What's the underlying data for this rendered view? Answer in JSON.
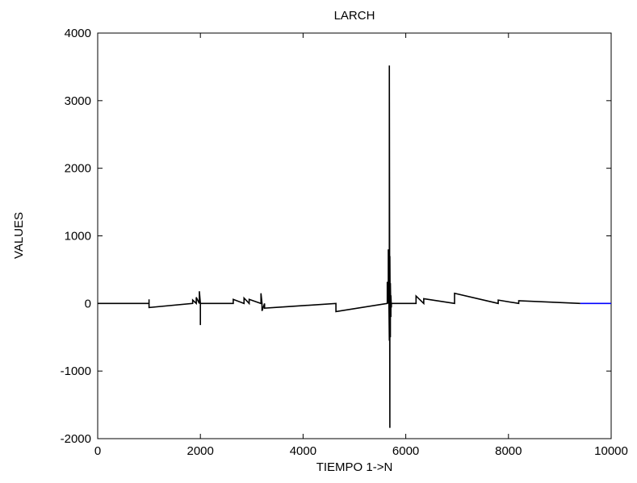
{
  "chart_data": {
    "type": "line",
    "title": "LARCH",
    "xlabel": "TIEMPO 1->N",
    "ylabel": "VALUES",
    "xlim": [
      0,
      10000
    ],
    "ylim": [
      -2000,
      4000
    ],
    "xticks": [
      "0",
      "2000",
      "4000",
      "6000",
      "8000",
      "10000"
    ],
    "yticks": [
      "-2000",
      "-1000",
      "0",
      "1000",
      "2000",
      "3000",
      "4000"
    ],
    "grid": false,
    "series": [
      {
        "color": "#000000",
        "x": [
          0,
          1000,
          1000,
          1000,
          1850,
          1850,
          1920,
          1920,
          1980,
          1980,
          2000,
          2000,
          2000,
          2640,
          2640,
          2850,
          2850,
          2950,
          2950,
          3180,
          3180,
          3200,
          3200,
          3250,
          3250,
          4640,
          4640,
          5640,
          5640,
          5660,
          5660,
          5680,
          5680,
          5690,
          5690,
          5700,
          5700,
          5710,
          5710,
          5720,
          5720,
          6200,
          6200,
          6350,
          6350,
          6950,
          6950,
          7800,
          7800,
          8200,
          8200,
          9400
        ],
        "y": [
          0,
          0,
          60,
          -60,
          0,
          50,
          0,
          90,
          0,
          180,
          0,
          -320,
          0,
          0,
          60,
          0,
          80,
          0,
          60,
          0,
          150,
          0,
          -110,
          0,
          -70,
          0,
          -120,
          0,
          320,
          0,
          800,
          -550,
          3520,
          -1840,
          700,
          -500,
          300,
          -200,
          120,
          -60,
          0,
          0,
          110,
          0,
          70,
          0,
          150,
          0,
          50,
          0,
          40,
          0
        ]
      },
      {
        "color": "#0000ff",
        "x": [
          9400,
          10000
        ],
        "y": [
          0,
          0
        ]
      }
    ]
  }
}
